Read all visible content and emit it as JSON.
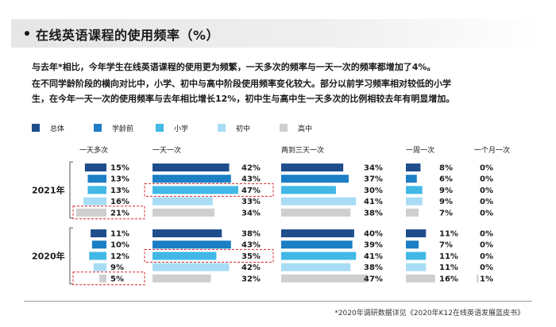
{
  "title": "在线英语课程的使用频率（%）",
  "description": [
    "与去年*相比，今年学生在线英语课程的使用更为频繁，一天多次的频率与一天一次的频率都增加了4%。",
    "在不同学龄阶段的横向对比中，小学、初中与高中阶段使用频率变化较大。部分以前学习频率相对较低的小学",
    "生，在今年一天一次的使用频率与去年相比增长12%，初中生与高中生一天多次的比例相较去年有明显增加。"
  ],
  "footnote": "*2020年调研数据详见《2020年K12在线英语发展蓝皮书》",
  "colors": {
    "series": [
      "#1f4e8c",
      "#1c7fc6",
      "#41b8e6",
      "#a8dcf5",
      "#cfcfcf"
    ],
    "highlight": "#d9262c"
  },
  "chart_data": {
    "type": "bar",
    "orientation": "horizontal",
    "legend_position": "top",
    "categories": [
      "一天多次",
      "一天一次",
      "两到三天一次",
      "一周一次",
      "一个月一次"
    ],
    "groups": [
      {
        "name": "2021年",
        "series": [
          {
            "name": "总体",
            "values": [
              15,
              42,
              34,
              8,
              0
            ]
          },
          {
            "name": "学龄前",
            "values": [
              13,
              43,
              37,
              6,
              0
            ]
          },
          {
            "name": "小学",
            "values": [
              13,
              47,
              30,
              9,
              0
            ]
          },
          {
            "name": "初中",
            "values": [
              16,
              33,
              41,
              9,
              0
            ]
          },
          {
            "name": "高中",
            "values": [
              21,
              34,
              38,
              7,
              0
            ]
          }
        ]
      },
      {
        "name": "2020年",
        "series": [
          {
            "name": "总体",
            "values": [
              11,
              38,
              40,
              11,
              0
            ]
          },
          {
            "name": "学龄前",
            "values": [
              10,
              43,
              39,
              7,
              0
            ]
          },
          {
            "name": "小学",
            "values": [
              12,
              35,
              41,
              11,
              0
            ]
          },
          {
            "name": "初中",
            "values": [
              9,
              42,
              38,
              11,
              0
            ]
          },
          {
            "name": "高中",
            "values": [
              5,
              32,
              47,
              16,
              1
            ]
          }
        ]
      }
    ],
    "highlighted": [
      {
        "group": 0,
        "series": 2,
        "category": 1
      },
      {
        "group": 0,
        "series": 4,
        "category": 0
      },
      {
        "group": 1,
        "series": 2,
        "category": 1
      },
      {
        "group": 1,
        "series": 4,
        "category": 0
      }
    ],
    "value_suffix": "%"
  }
}
